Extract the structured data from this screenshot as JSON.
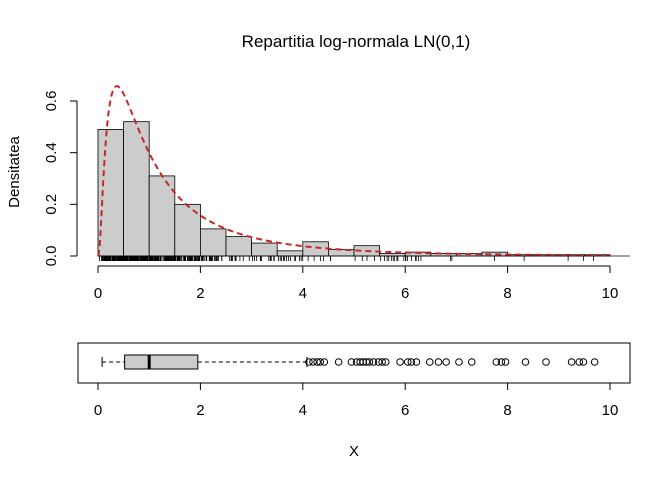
{
  "chart_data": [
    {
      "type": "bar",
      "title": "Repartitia log-normala LN(0,1)",
      "ylabel": "Densitatea",
      "xlabel": "",
      "xlim": [
        -0.2,
        10.4
      ],
      "ylim": [
        0,
        0.65
      ],
      "xticks": [
        "0",
        "2",
        "4",
        "6",
        "8",
        "10"
      ],
      "xtick_values": [
        0,
        2,
        4,
        6,
        8,
        10
      ],
      "yticks": [
        "0.0",
        "0.2",
        "0.4",
        "0.6"
      ],
      "ytick_values": [
        0,
        0.2,
        0.4,
        0.6
      ],
      "bin_width": 0.5,
      "bin_starts": [
        0,
        0.5,
        1,
        1.5,
        2,
        2.5,
        3,
        3.5,
        4,
        4.5,
        5,
        5.5,
        6,
        6.5,
        7,
        7.5,
        8,
        8.5,
        9,
        9.5
      ],
      "densities": [
        0.49,
        0.52,
        0.31,
        0.2,
        0.105,
        0.075,
        0.05,
        0.02,
        0.055,
        0.025,
        0.04,
        0.01,
        0.015,
        0.01,
        0.01,
        0.015,
        0.005,
        0.005,
        0.005,
        0.005
      ],
      "bar_color": "#cccccc",
      "curve": {
        "name": "dlnorm(0,1)",
        "style": "dashed",
        "color": "#c62828"
      },
      "rug": true
    },
    {
      "type": "boxplot",
      "xlabel": "X",
      "xlim": [
        -0.2,
        10.4
      ],
      "xticks": [
        "0",
        "2",
        "4",
        "6",
        "8",
        "10"
      ],
      "xtick_values": [
        0,
        2,
        4,
        6,
        8,
        10
      ],
      "min": 0.08,
      "q1": 0.52,
      "median": 1.0,
      "q3": 1.95,
      "whisker_high": 4.08,
      "outliers": [
        4.12,
        4.2,
        4.28,
        4.34,
        4.42,
        4.7,
        4.95,
        5.05,
        5.12,
        5.18,
        5.24,
        5.3,
        5.38,
        5.48,
        5.55,
        5.62,
        5.9,
        6.05,
        6.12,
        6.22,
        6.48,
        6.65,
        6.8,
        7.05,
        7.3,
        7.78,
        7.88,
        7.96,
        8.35,
        8.75,
        9.25,
        9.4,
        9.48,
        9.7
      ],
      "box_color": "#cccccc"
    }
  ]
}
